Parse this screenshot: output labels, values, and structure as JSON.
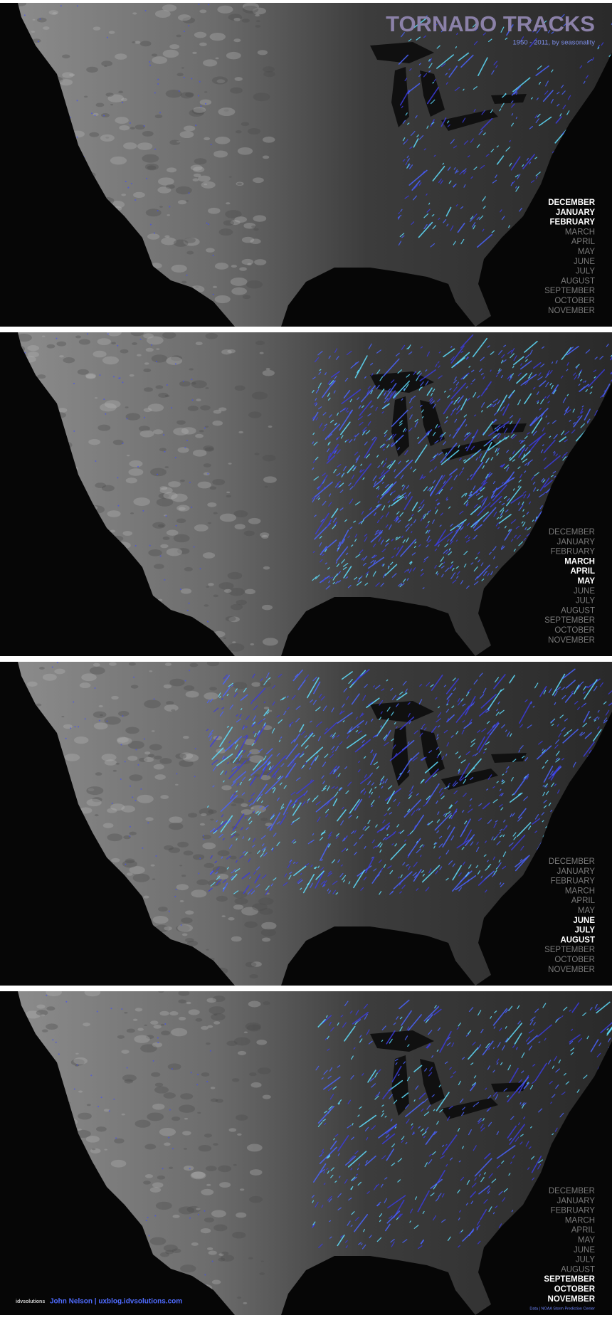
{
  "header": {
    "title": "TORNADO TRACKS",
    "subtitle": "1950 - 2011, by seasonality"
  },
  "panels": [
    {
      "months": [
        "DECEMBER",
        "JANUARY",
        "FEBRUARY",
        "MARCH",
        "APRIL",
        "MAY",
        "JUNE",
        "JULY",
        "AUGUST",
        "SEPTEMBER",
        "OCTOBER",
        "NOVEMBER"
      ],
      "highlighted": [
        0,
        1,
        2
      ]
    },
    {
      "months": [
        "DECEMBER",
        "JANUARY",
        "FEBRUARY",
        "MARCH",
        "APRIL",
        "MAY",
        "JUNE",
        "JULY",
        "AUGUST",
        "SEPTEMBER",
        "OCTOBER",
        "NOVEMBER"
      ],
      "highlighted": [
        3,
        4,
        5
      ]
    },
    {
      "months": [
        "DECEMBER",
        "JANUARY",
        "FEBRUARY",
        "MARCH",
        "APRIL",
        "MAY",
        "JUNE",
        "JULY",
        "AUGUST",
        "SEPTEMBER",
        "OCTOBER",
        "NOVEMBER"
      ],
      "highlighted": [
        6,
        7,
        8
      ]
    },
    {
      "months": [
        "DECEMBER",
        "JANUARY",
        "FEBRUARY",
        "MARCH",
        "APRIL",
        "MAY",
        "JUNE",
        "JULY",
        "AUGUST",
        "SEPTEMBER",
        "OCTOBER",
        "NOVEMBER"
      ],
      "highlighted": [
        9,
        10,
        11
      ]
    }
  ],
  "footer": {
    "brand": "idvsolutions",
    "author": "John Nelson  |  uxblog.idvsolutions.com",
    "source": "Data  |  NOAA Storm Prediction Center"
  }
}
